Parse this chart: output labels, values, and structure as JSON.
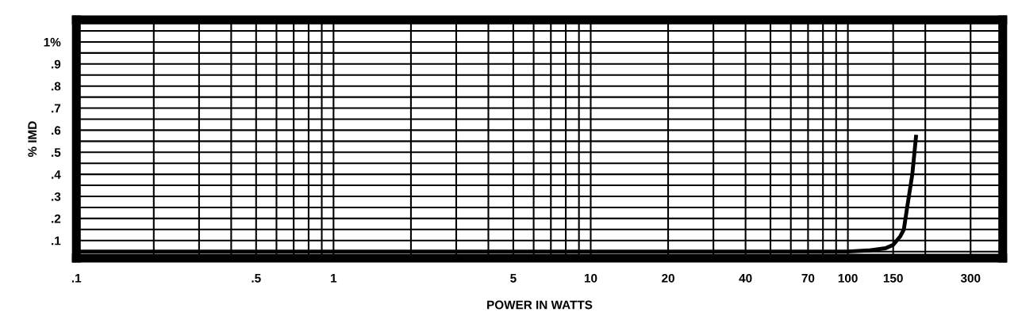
{
  "chart_data": {
    "type": "line",
    "xlabel": "POWER IN WATTS",
    "ylabel": "% IMD",
    "log": "x",
    "grid": true,
    "marker": "none",
    "line_style": "solid",
    "x": [
      0.1,
      0.2,
      0.5,
      1,
      2,
      5,
      10,
      20,
      50,
      100,
      120,
      140,
      150,
      160,
      165,
      170,
      178,
      184
    ],
    "series": [
      {
        "color": "#000000",
        "values": [
          0.05,
          0.05,
          0.05,
          0.05,
          0.05,
          0.05,
          0.05,
          0.05,
          0.05,
          0.05,
          0.055,
          0.065,
          0.08,
          0.12,
          0.15,
          0.25,
          0.4,
          0.57
        ]
      }
    ],
    "xlim": [
      0.1,
      400
    ],
    "ylim": [
      0.02,
      1.1
    ],
    "xticks": [
      {
        "value": 0.1,
        "label": ".1"
      },
      {
        "value": 0.2,
        "label": null
      },
      {
        "value": 0.3,
        "label": null
      },
      {
        "value": 0.4,
        "label": null
      },
      {
        "value": 0.5,
        "label": ".5"
      },
      {
        "value": 0.6,
        "label": null
      },
      {
        "value": 0.7,
        "label": null
      },
      {
        "value": 0.8,
        "label": null
      },
      {
        "value": 0.9,
        "label": null
      },
      1,
      {
        "value": 2,
        "label": null
      },
      {
        "value": 3,
        "label": null
      },
      {
        "value": 4,
        "label": null
      },
      5,
      {
        "value": 6,
        "label": null
      },
      {
        "value": 7,
        "label": null
      },
      {
        "value": 8,
        "label": null
      },
      {
        "value": 9,
        "label": null
      },
      10,
      20,
      {
        "value": 30,
        "label": null
      },
      40,
      {
        "value": 50,
        "label": null
      },
      {
        "value": 60,
        "label": null
      },
      70,
      {
        "value": 80,
        "label": null
      },
      {
        "value": 90,
        "label": null
      },
      100,
      150,
      {
        "value": 200,
        "label": null
      },
      300
    ],
    "yticks": [
      {
        "value": 0.05,
        "label": null
      },
      {
        "value": 0.1,
        "label": ".1"
      },
      {
        "value": 0.15,
        "label": null
      },
      {
        "value": 0.2,
        "label": ".2"
      },
      {
        "value": 0.25,
        "label": null
      },
      {
        "value": 0.3,
        "label": ".3"
      },
      {
        "value": 0.35,
        "label": null
      },
      {
        "value": 0.4,
        "label": ".4"
      },
      {
        "value": 0.45,
        "label": null
      },
      {
        "value": 0.5,
        "label": ".5"
      },
      {
        "value": 0.55,
        "label": null
      },
      {
        "value": 0.6,
        "label": ".6"
      },
      {
        "value": 0.65,
        "label": null
      },
      {
        "value": 0.7,
        "label": ".7"
      },
      {
        "value": 0.75,
        "label": null
      },
      {
        "value": 0.8,
        "label": ".8"
      },
      {
        "value": 0.85,
        "label": null
      },
      {
        "value": 0.9,
        "label": ".9"
      },
      {
        "value": 0.95,
        "label": null
      },
      {
        "value": 1.0,
        "label": "1%"
      },
      {
        "value": 1.05,
        "label": null
      }
    ]
  }
}
